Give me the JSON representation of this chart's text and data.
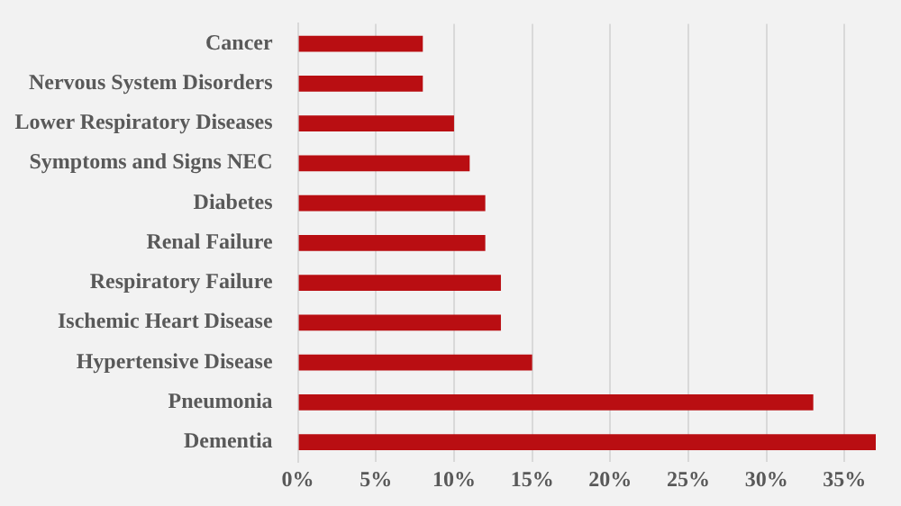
{
  "chart_data": {
    "type": "bar",
    "orientation": "horizontal",
    "categories": [
      "Cancer",
      "Nervous System Disorders",
      "Lower Respiratory Diseases",
      "Symptoms and Signs NEC",
      "Diabetes",
      "Renal Failure",
      "Respiratory Failure",
      "Ischemic Heart Disease",
      "Hypertensive Disease",
      "Pneumonia",
      "Dementia"
    ],
    "values": [
      8,
      8,
      10,
      11,
      12,
      12,
      13,
      13,
      15,
      33,
      37
    ],
    "color": "#b90e12",
    "xlim": [
      0,
      37
    ],
    "xticks": [
      {
        "value": 0,
        "label": "0%"
      },
      {
        "value": 5,
        "label": "5%"
      },
      {
        "value": 10,
        "label": "10%"
      },
      {
        "value": 15,
        "label": "15%"
      },
      {
        "value": 20,
        "label": "20%"
      },
      {
        "value": 25,
        "label": "25%"
      },
      {
        "value": 30,
        "label": "30%"
      },
      {
        "value": 35,
        "label": "35%"
      }
    ],
    "grid": "x",
    "legend": false
  }
}
